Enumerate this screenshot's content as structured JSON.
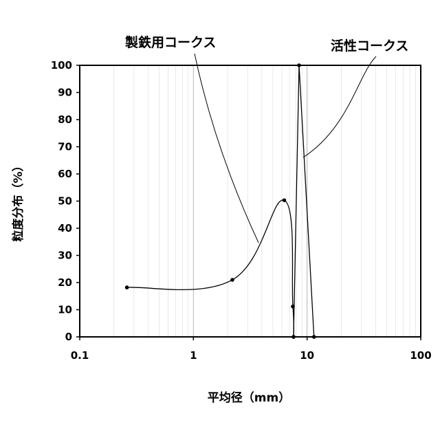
{
  "chart_data": {
    "type": "line",
    "xscale": "log",
    "xlim": [
      0.1,
      100
    ],
    "ylim": [
      0,
      100
    ],
    "x_ticks": [
      "0.1",
      "1",
      "10",
      "100"
    ],
    "y_ticks": [
      "0",
      "10",
      "20",
      "30",
      "40",
      "50",
      "60",
      "70",
      "80",
      "90",
      "100"
    ],
    "xlabel": "平均径（mm）",
    "ylabel": "粒度分布（%）",
    "grid": "vertical",
    "series": [
      {
        "name": "製鉄用コークス",
        "color": "#000000",
        "smooth": true,
        "points": [
          {
            "x": 0.26,
            "y": 18.2
          },
          {
            "x": 2.2,
            "y": 21
          },
          {
            "x": 6.3,
            "y": 50.3
          },
          {
            "x": 7.5,
            "y": 11.2
          },
          {
            "x": 7.6,
            "y": 0
          }
        ]
      },
      {
        "name": "活性コークス",
        "color": "#000000",
        "smooth": false,
        "points": [
          {
            "x": 7.6,
            "y": 0
          },
          {
            "x": 8.5,
            "y": 100
          },
          {
            "x": 11.5,
            "y": 0
          }
        ]
      }
    ],
    "annotations": [
      {
        "text": "製鉄用コークス",
        "series": 0
      },
      {
        "text": "活性コークス",
        "series": 1
      }
    ]
  }
}
